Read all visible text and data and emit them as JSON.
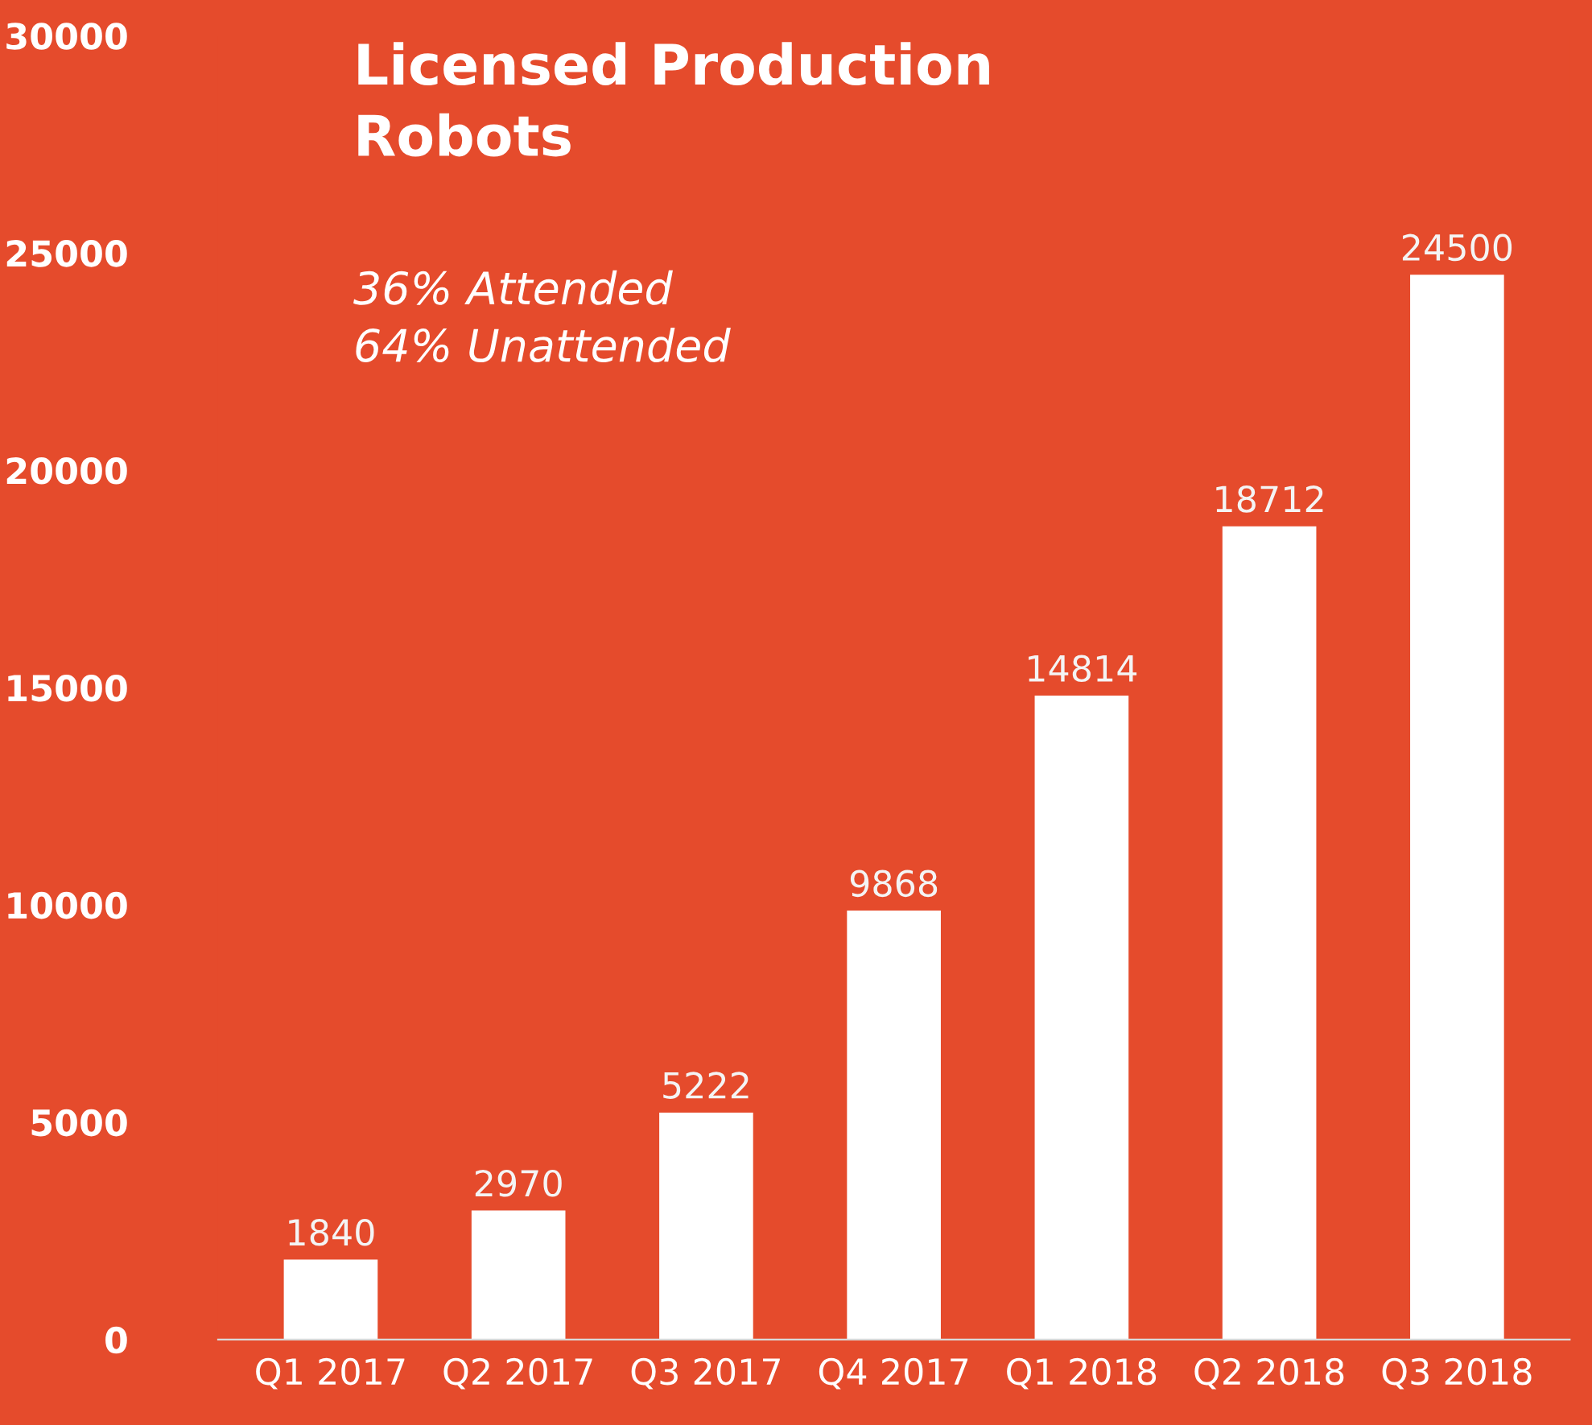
{
  "chart_data": {
    "type": "bar",
    "title": "Licensed Production\nRobots",
    "annotations": [
      "36% Attended",
      "64% Unattended"
    ],
    "categories": [
      "Q1 2017",
      "Q2 2017",
      "Q3 2017",
      "Q4 2017",
      "Q1 2018",
      "Q2 2018",
      "Q3 2018"
    ],
    "values": [
      1840,
      2970,
      5222,
      9868,
      14814,
      18712,
      24500
    ],
    "color": "#ffffff",
    "ylim": [
      0,
      30000
    ],
    "yticks": [
      0,
      5000,
      10000,
      15000,
      20000,
      25000,
      30000
    ],
    "grid": false,
    "data_labels": true
  }
}
